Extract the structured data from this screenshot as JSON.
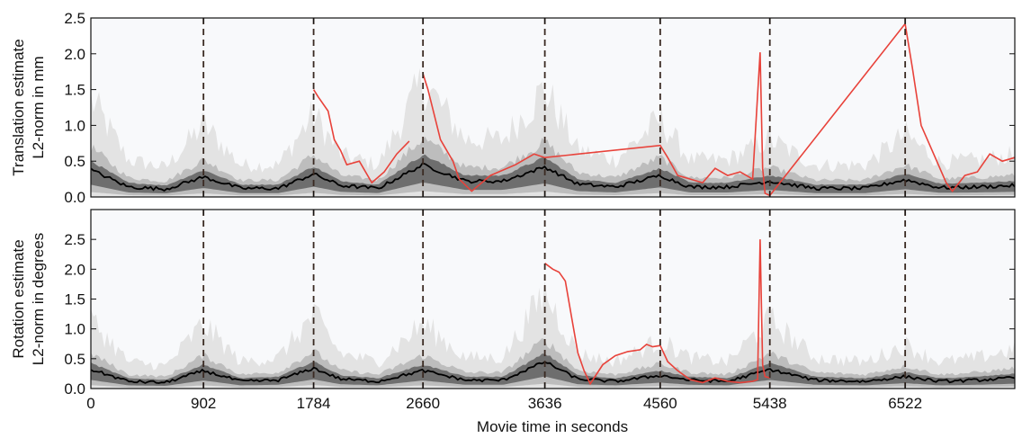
{
  "figure": {
    "xlabel": "Movie time in seconds"
  },
  "chart_data": [
    {
      "type": "line",
      "panel": "top",
      "ylabel_lines": [
        "Translation estimate",
        "L2-norm in mm"
      ],
      "xlim": [
        0,
        7400
      ],
      "ylim": [
        0,
        2.5
      ],
      "yticks": [
        0.0,
        0.5,
        1.0,
        1.5,
        2.0,
        2.5
      ],
      "ytick_labels": [
        "0.0",
        "0.5",
        "1.0",
        "1.5",
        "2.0",
        "2.5"
      ],
      "segment_boundaries": [
        902,
        1784,
        2660,
        3636,
        4560,
        5438,
        6522
      ],
      "grid": false,
      "colors": {
        "median": "#000000",
        "inner_band": "#6e6e6e",
        "outer_band": "#bdbdbd",
        "envelope": "#e3e3e3",
        "highlight": "#e8423a",
        "boundary": "#3a2a22",
        "background": "#f8f9fb"
      },
      "series": [
        {
          "role": "median",
          "x": [
            0,
            300,
            600,
            902,
            1200,
            1500,
            1784,
            2000,
            2300,
            2660,
            3000,
            3300,
            3636,
            3900,
            4200,
            4560,
            4800,
            5100,
            5438,
            5800,
            6200,
            6522,
            6800,
            7100,
            7400
          ],
          "values": [
            0.38,
            0.14,
            0.11,
            0.28,
            0.12,
            0.12,
            0.32,
            0.16,
            0.12,
            0.45,
            0.22,
            0.22,
            0.42,
            0.18,
            0.14,
            0.3,
            0.14,
            0.14,
            0.22,
            0.12,
            0.12,
            0.24,
            0.13,
            0.14,
            0.16
          ]
        },
        {
          "role": "spike",
          "x": [
            1784,
            1820,
            1900,
            1950,
            2000,
            2050,
            2150,
            2250,
            2350,
            2450,
            2550,
            2660,
            2700,
            2800,
            2900,
            2950,
            3050,
            3200,
            3400,
            3550,
            3636,
            4560,
            4620,
            4700,
            4800,
            4900,
            5000,
            5100,
            5200,
            5300,
            5360,
            5380,
            5400,
            5438,
            6522,
            6580,
            6650,
            6750,
            6850,
            6900,
            7000,
            7100,
            7200,
            7300,
            7400
          ],
          "values": [
            1.5,
            1.4,
            1.2,
            0.8,
            0.65,
            0.45,
            0.5,
            0.2,
            0.35,
            0.6,
            0.78,
            1.72,
            1.5,
            0.8,
            0.5,
            0.25,
            0.08,
            0.3,
            0.45,
            0.6,
            0.55,
            0.72,
            0.55,
            0.3,
            0.25,
            0.2,
            0.4,
            0.3,
            0.35,
            0.25,
            2.02,
            0.4,
            0.05,
            0.02,
            2.42,
            1.8,
            1.0,
            0.6,
            0.2,
            0.08,
            0.3,
            0.35,
            0.6,
            0.5,
            0.55
          ]
        }
      ]
    },
    {
      "type": "line",
      "panel": "bottom",
      "ylabel_lines": [
        "Rotation estimate",
        "L2-norm in degrees"
      ],
      "xlim": [
        0,
        7400
      ],
      "ylim": [
        0,
        3.0
      ],
      "yticks": [
        0.0,
        0.5,
        1.0,
        1.5,
        2.0,
        2.5
      ],
      "ytick_labels": [
        "0.0",
        "0.5",
        "1.0",
        "1.5",
        "2.0",
        "2.5"
      ],
      "xticks": [
        0,
        902,
        1784,
        2660,
        3636,
        4560,
        5438,
        6522
      ],
      "xtick_labels": [
        "0",
        "902",
        "1784",
        "2660",
        "3636",
        "4560",
        "5438",
        "6522"
      ],
      "segment_boundaries": [
        902,
        1784,
        2660,
        3636,
        4560,
        5438,
        6522
      ],
      "grid": false,
      "series": [
        {
          "role": "median",
          "x": [
            0,
            300,
            600,
            902,
            1200,
            1500,
            1784,
            2000,
            2300,
            2660,
            3000,
            3300,
            3636,
            3900,
            4200,
            4560,
            4800,
            5100,
            5438,
            5800,
            6200,
            6522,
            6800,
            7100,
            7400
          ],
          "values": [
            0.32,
            0.12,
            0.1,
            0.3,
            0.12,
            0.14,
            0.34,
            0.16,
            0.12,
            0.3,
            0.14,
            0.14,
            0.45,
            0.16,
            0.12,
            0.22,
            0.14,
            0.12,
            0.32,
            0.14,
            0.12,
            0.2,
            0.12,
            0.14,
            0.18
          ]
        },
        {
          "role": "spike",
          "x": [
            3636,
            3700,
            3750,
            3800,
            3850,
            3900,
            3950,
            4000,
            4100,
            4200,
            4300,
            4400,
            4450,
            4500,
            4560,
            4620,
            4700,
            4800,
            4900,
            5000,
            5100,
            5200,
            5300,
            5340,
            5360,
            5380,
            5400,
            5438
          ],
          "values": [
            2.1,
            2.0,
            1.95,
            1.8,
            1.2,
            0.6,
            0.3,
            0.08,
            0.4,
            0.55,
            0.62,
            0.65,
            0.74,
            0.7,
            0.72,
            0.45,
            0.3,
            0.15,
            0.1,
            0.18,
            0.12,
            0.1,
            0.12,
            0.15,
            2.5,
            0.4,
            0.2,
            0.18
          ]
        }
      ]
    }
  ]
}
